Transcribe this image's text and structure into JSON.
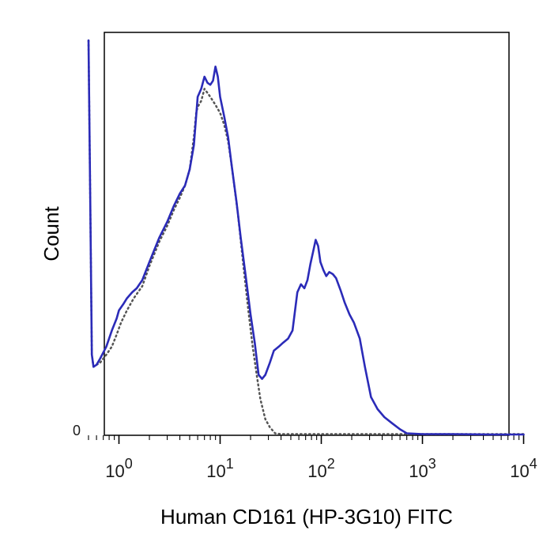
{
  "chart_data": {
    "type": "line",
    "title": "",
    "xlabel": "Human CD161 (HP-3G10) FITC",
    "ylabel": "Count",
    "x_scale": "log",
    "xlim": [
      0.5,
      10000
    ],
    "ylim": [
      0,
      100
    ],
    "y_tick_labels": [
      "0"
    ],
    "x_ticks": [
      {
        "value": 1,
        "base": "10",
        "exp": "0"
      },
      {
        "value": 10,
        "base": "10",
        "exp": "1"
      },
      {
        "value": 100,
        "base": "10",
        "exp": "2"
      },
      {
        "value": 1000,
        "base": "10",
        "exp": "3"
      },
      {
        "value": 10000,
        "base": "10",
        "exp": "4"
      }
    ],
    "grid": false,
    "legend": "none",
    "series": [
      {
        "style": "solid",
        "color": "#2b2bb8",
        "x": [
          0.5,
          0.52,
          0.54,
          0.56,
          0.6,
          0.65,
          0.75,
          0.85,
          0.95,
          1.0,
          1.1,
          1.2,
          1.35,
          1.5,
          1.7,
          2.0,
          2.5,
          3.0,
          3.5,
          4.0,
          4.5,
          5.0,
          5.5,
          6.0,
          6.5,
          7.0,
          7.5,
          8.0,
          8.5,
          9.0,
          9.5,
          10.0,
          11.0,
          12.0,
          13.0,
          14.5,
          16.0,
          18.0,
          20.0,
          22.0,
          24.0,
          26.0,
          28.0,
          31.0,
          34.0,
          38.0,
          42.0,
          47.0,
          52.0,
          58.0,
          63.0,
          68.0,
          73.0,
          78.0,
          83.0,
          88.0,
          93.0,
          98.0,
          105.0,
          112.0,
          120.0,
          130.0,
          140.0,
          155.0,
          170.0,
          190.0,
          210.0,
          240.0,
          270.0,
          310.0,
          360.0,
          420.0,
          500.0,
          600.0,
          700.0,
          1000.0,
          2000.0,
          5000.0,
          10000.0
        ],
        "y": [
          98,
          60,
          20,
          17,
          17.5,
          19,
          22,
          26,
          29,
          31,
          32.5,
          34,
          35.5,
          36.5,
          38.5,
          43,
          49,
          53,
          57,
          60,
          62,
          66,
          72,
          84,
          86,
          89,
          87.5,
          87,
          88,
          91.5,
          89,
          84,
          79,
          74,
          67,
          58,
          49,
          39,
          30,
          23,
          15,
          14,
          15,
          18,
          21,
          22,
          23,
          24,
          26,
          35.5,
          37.5,
          36.5,
          38.5,
          42.5,
          45.5,
          48.5,
          47,
          43,
          41,
          39.5,
          40.5,
          40,
          39,
          36,
          33,
          30,
          28,
          24,
          17,
          9.5,
          6.5,
          4.5,
          3,
          1.5,
          0.5,
          0.3,
          0.3,
          0.2,
          0.2
        ]
      },
      {
        "style": "dotted",
        "color": "#555555",
        "x": [
          0.5,
          0.52,
          0.54,
          0.56,
          0.6,
          0.65,
          0.75,
          0.85,
          0.95,
          1.05,
          1.2,
          1.4,
          1.7,
          2.0,
          2.5,
          3.0,
          3.5,
          4.0,
          4.5,
          5.0,
          5.5,
          5.8,
          6.0,
          6.5,
          7.0,
          8.0,
          9.0,
          10.0,
          11.0,
          12.0,
          13.0,
          15.0,
          17.0,
          19.0,
          21.0,
          23.0,
          25.0,
          28.0,
          31.0,
          35.0,
          40.0,
          50.0,
          100.0,
          1000.0,
          10000.0
        ],
        "y": [
          98,
          60,
          20,
          17,
          17.5,
          18,
          20,
          22,
          25,
          28,
          31,
          34,
          37,
          42,
          48,
          52,
          56,
          59,
          62,
          66,
          74,
          80,
          81.5,
          83,
          86,
          84,
          82,
          80,
          77,
          73,
          67,
          55,
          42,
          31,
          22,
          15,
          9,
          4,
          2,
          0.5,
          0.3,
          0.3,
          0.3,
          0.3,
          0.3
        ]
      }
    ]
  }
}
